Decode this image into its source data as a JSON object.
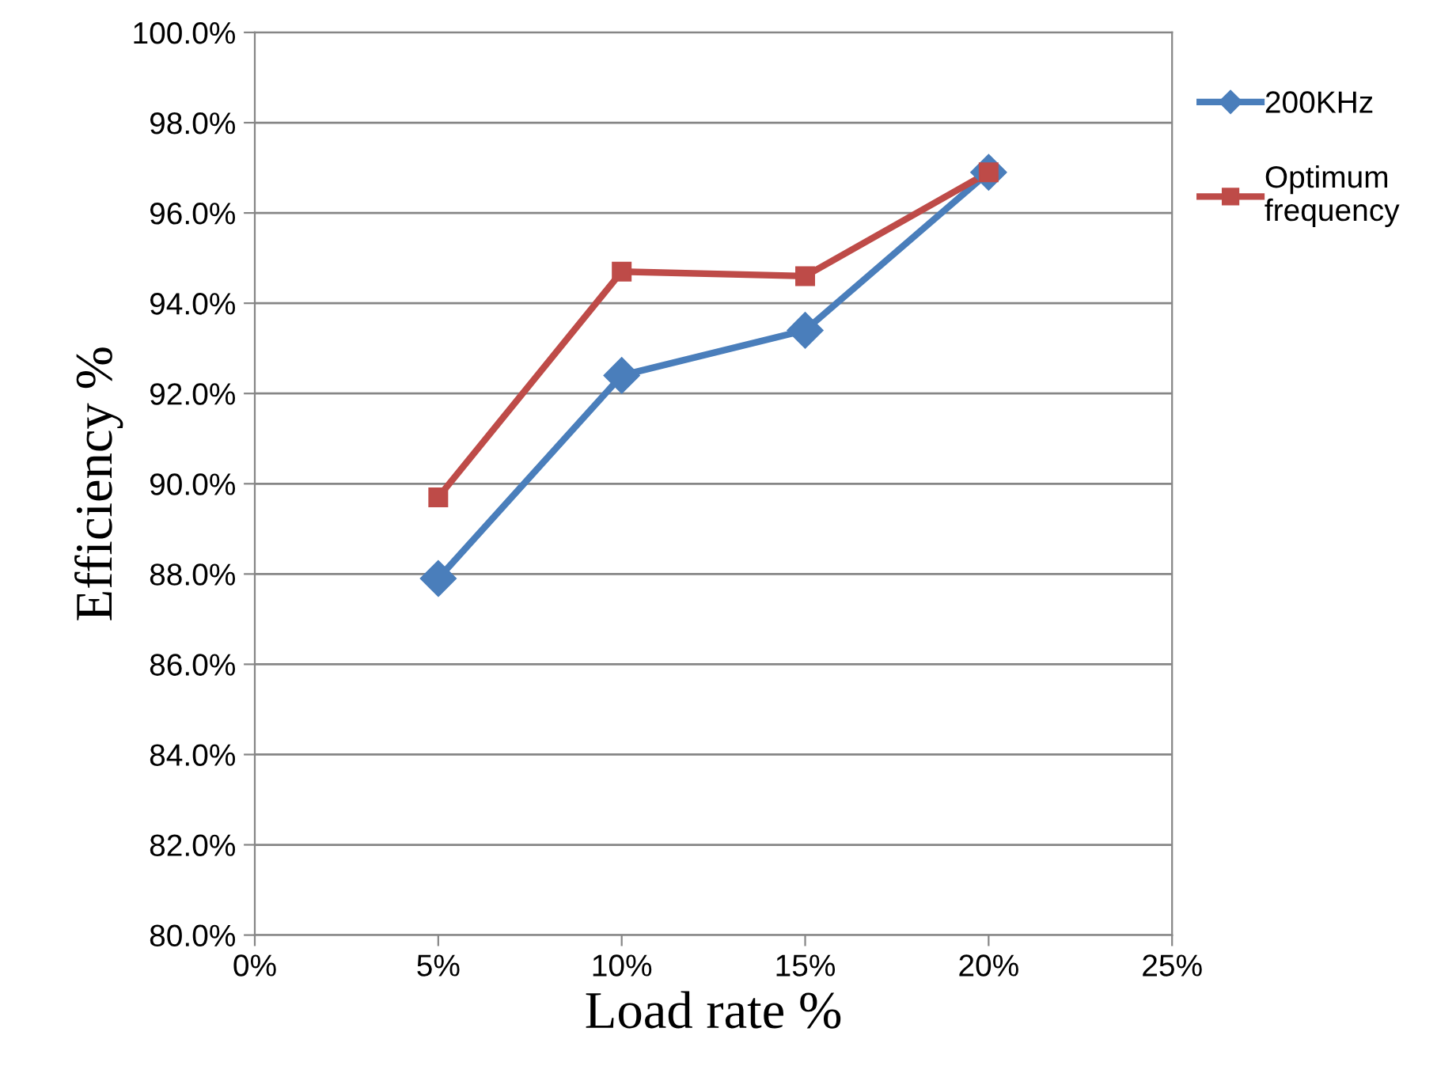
{
  "chart_data": {
    "type": "line",
    "xlabel": "Load rate %",
    "ylabel": "Efficiency %",
    "x": [
      5,
      10,
      15,
      20
    ],
    "series": [
      {
        "name": "200KHz",
        "color": "#4a7ebb",
        "marker": "diamond",
        "values": [
          87.9,
          92.4,
          93.4,
          96.9
        ]
      },
      {
        "name": "Optimum\nfrequency",
        "color": "#be4b48",
        "marker": "square",
        "values": [
          89.7,
          94.7,
          94.6,
          96.9
        ]
      }
    ],
    "xlim": [
      0,
      25
    ],
    "xticks": [
      {
        "value": 0,
        "label": "0%"
      },
      {
        "value": 5,
        "label": "5%"
      },
      {
        "value": 10,
        "label": "10%"
      },
      {
        "value": 15,
        "label": "15%"
      },
      {
        "value": 20,
        "label": "20%"
      },
      {
        "value": 25,
        "label": "25%"
      }
    ],
    "ylim": [
      80,
      100
    ],
    "yticks": [
      {
        "value": 80,
        "label": "80.0%"
      },
      {
        "value": 82,
        "label": "82.0%"
      },
      {
        "value": 84,
        "label": "84.0%"
      },
      {
        "value": 86,
        "label": "86.0%"
      },
      {
        "value": 88,
        "label": "88.0%"
      },
      {
        "value": 90,
        "label": "90.0%"
      },
      {
        "value": 92,
        "label": "92.0%"
      },
      {
        "value": 94,
        "label": "94.0%"
      },
      {
        "value": 96,
        "label": "96.0%"
      },
      {
        "value": 98,
        "label": "98.0%"
      },
      {
        "value": 100,
        "label": "100.0%"
      }
    ],
    "grid": "y",
    "legend": "right",
    "line_style": "solid"
  }
}
